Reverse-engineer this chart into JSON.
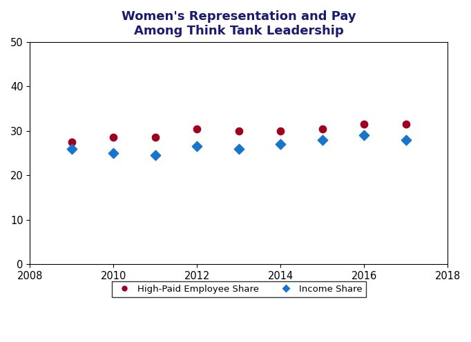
{
  "title": "Women's Representation and Pay\nAmong Think Tank Leadership",
  "years": [
    2009,
    2010,
    2011,
    2012,
    2013,
    2014,
    2015,
    2016,
    2017
  ],
  "high_paid_share": [
    27.5,
    28.5,
    28.5,
    30.5,
    30.0,
    30.0,
    30.5,
    31.5,
    31.5
  ],
  "income_share": [
    26.0,
    25.0,
    24.5,
    26.5,
    26.0,
    27.0,
    28.0,
    29.0,
    28.0
  ],
  "high_paid_color": "#A0001E",
  "income_color": "#1874CD",
  "xlim": [
    2008,
    2018
  ],
  "ylim": [
    0,
    50
  ],
  "yticks": [
    0,
    10,
    20,
    30,
    40,
    50
  ],
  "xticks": [
    2008,
    2010,
    2012,
    2014,
    2016,
    2018
  ],
  "legend_label_high_paid": "High-Paid Employee Share",
  "legend_label_income": "Income Share",
  "marker_size": 55,
  "background_color": "#ffffff",
  "title_fontsize": 13,
  "tick_fontsize": 10.5,
  "title_color": "#1a1a6e"
}
